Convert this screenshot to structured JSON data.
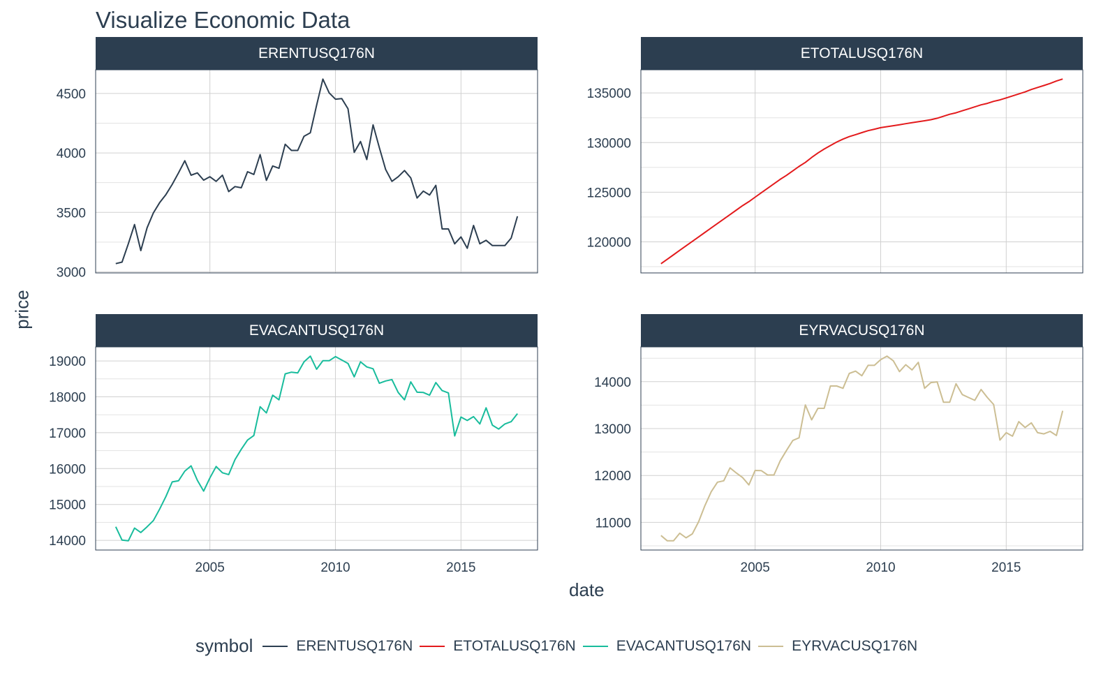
{
  "title": "Visualize Economic Data",
  "chart_data": {
    "type": "line",
    "title": "Visualize Economic Data",
    "xlabel": "date",
    "ylabel": "price",
    "legend": {
      "title": "symbol",
      "position": "bottom"
    },
    "x_start": 2001.25,
    "x_step": 0.25,
    "xlim": [
      2000.45,
      2018.05
    ],
    "x_ticks": [
      2005,
      2010,
      2015
    ],
    "grid": true,
    "panels": [
      {
        "name": "ERENTUSQ176N",
        "color": "#2c3e50",
        "ylim": [
          2991,
          4699
        ],
        "y_ticks": [
          3000,
          3500,
          4000,
          4500
        ],
        "values": [
          3069,
          3082,
          3236,
          3398,
          3179,
          3371,
          3496,
          3582,
          3650,
          3736,
          3832,
          3934,
          3813,
          3832,
          3771,
          3800,
          3761,
          3813,
          3675,
          3717,
          3707,
          3842,
          3819,
          3986,
          3769,
          3890,
          3871,
          4073,
          4021,
          4021,
          4140,
          4169,
          4400,
          4621,
          4505,
          4452,
          4457,
          4371,
          4005,
          4096,
          3944,
          4236,
          4044,
          3861,
          3761,
          3800,
          3852,
          3790,
          3621,
          3679,
          3646,
          3727,
          3361,
          3361,
          3236,
          3294,
          3198,
          3390,
          3236,
          3265,
          3221,
          3221,
          3221,
          3284,
          3467
        ]
      },
      {
        "name": "ETOTALUSQ176N",
        "color": "#e31a1c",
        "ylim": [
          116870,
          137330
        ],
        "y_ticks": [
          120000,
          125000,
          130000,
          135000
        ],
        "values": [
          117800,
          118250,
          118700,
          119150,
          119600,
          120050,
          120500,
          120950,
          121400,
          121850,
          122300,
          122750,
          123200,
          123650,
          124050,
          124500,
          124950,
          125400,
          125850,
          126300,
          126700,
          127150,
          127600,
          128000,
          128500,
          128950,
          129350,
          129700,
          130050,
          130350,
          130600,
          130800,
          131000,
          131200,
          131350,
          131500,
          131600,
          131700,
          131800,
          131900,
          132000,
          132100,
          132200,
          132300,
          132450,
          132650,
          132850,
          133000,
          133200,
          133400,
          133600,
          133800,
          133950,
          134150,
          134300,
          134500,
          134700,
          134900,
          135100,
          135350,
          135550,
          135750,
          135950,
          136200,
          136400
        ]
      },
      {
        "name": "EVACANTUSQ176N",
        "color": "#18bc9c",
        "ylim": [
          13730,
          19391
        ],
        "y_ticks": [
          14000,
          15000,
          16000,
          17000,
          18000,
          19000
        ],
        "values": [
          14378,
          14006,
          13987,
          14340,
          14218,
          14378,
          14551,
          14872,
          15224,
          15628,
          15660,
          15929,
          16077,
          15673,
          15372,
          15737,
          16058,
          15884,
          15833,
          16250,
          16538,
          16795,
          16923,
          17724,
          17551,
          18045,
          17917,
          18641,
          18686,
          18666,
          18974,
          19134,
          18769,
          19006,
          19006,
          19121,
          19025,
          18929,
          18557,
          18974,
          18833,
          18782,
          18378,
          18442,
          18480,
          18121,
          17917,
          18416,
          18128,
          18121,
          18045,
          18397,
          18173,
          18109,
          16910,
          17436,
          17340,
          17448,
          17243,
          17692,
          17211,
          17102,
          17243,
          17307,
          17532
        ]
      },
      {
        "name": "EYRVACUSQ176N",
        "color": "#ccbe93",
        "ylim": [
          10411,
          14741
        ],
        "y_ticks": [
          11000,
          12000,
          13000,
          14000
        ],
        "values": [
          10720,
          10608,
          10608,
          10769,
          10671,
          10755,
          11014,
          11358,
          11652,
          11858,
          11887,
          12162,
          12054,
          11956,
          11799,
          12108,
          12103,
          12010,
          12010,
          12313,
          12534,
          12745,
          12804,
          13505,
          13186,
          13431,
          13431,
          13907,
          13907,
          13858,
          14176,
          14225,
          14127,
          14348,
          14348,
          14470,
          14544,
          14446,
          14215,
          14362,
          14250,
          14412,
          13858,
          13980,
          13995,
          13563,
          13563,
          13956,
          13725,
          13662,
          13603,
          13833,
          13662,
          13514,
          12755,
          12912,
          12838,
          13147,
          13024,
          13122,
          12912,
          12887,
          12941,
          12853,
          13380
        ]
      }
    ]
  }
}
